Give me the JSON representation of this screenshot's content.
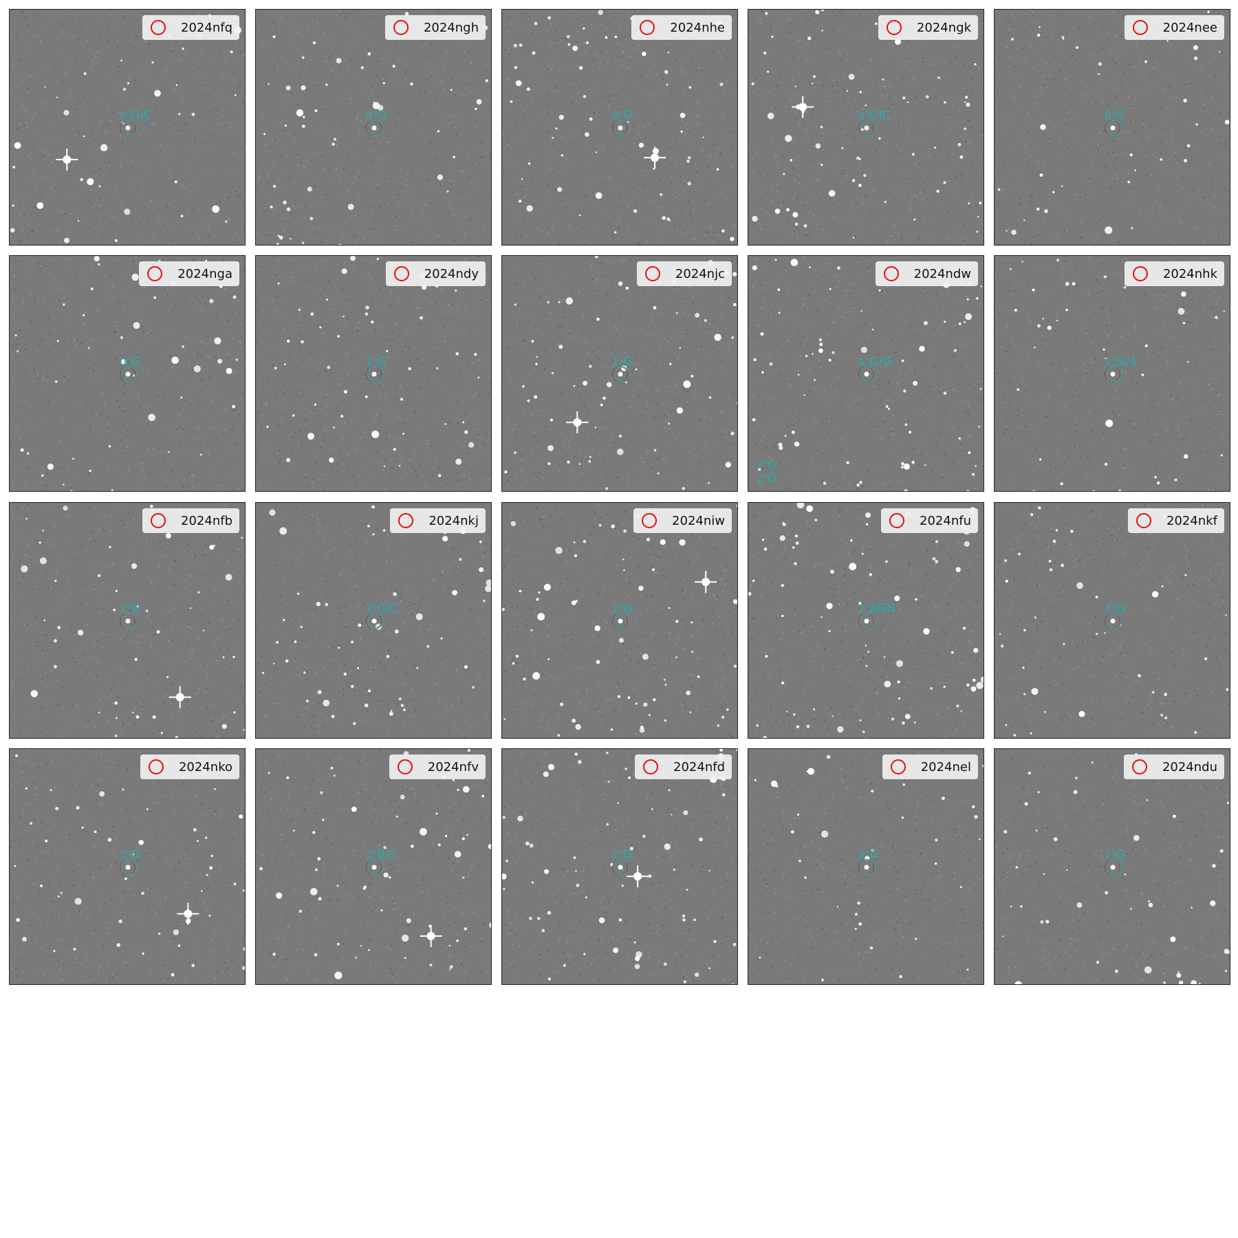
{
  "colors": {
    "target_circle": "#e01010",
    "host_annotation": "#20b0b0",
    "sky_background": "#7a7a7a",
    "legend_background": "#f0f0f0",
    "panel_border": "#222222"
  },
  "legend_marker_icon": "red-circle-icon",
  "panels": [
    {
      "label": "2024nfq",
      "annotations": [
        {
          "sep": "0\"",
          "cls": "GIC"
        }
      ]
    },
    {
      "label": "2024ngh",
      "annotations": [
        {
          "sep": "0\"",
          "cls": "G"
        }
      ]
    },
    {
      "label": "2024nhe",
      "annotations": [
        {
          "sep": "0\"",
          "cls": "G"
        }
      ]
    },
    {
      "label": "2024ngk",
      "annotations": [
        {
          "sep": "0\"",
          "cls": "GIC"
        }
      ]
    },
    {
      "label": "2024nee",
      "annotations": [
        {
          "sep": "0\"",
          "cls": "G"
        }
      ]
    },
    {
      "label": "2024nga",
      "annotations": [
        {
          "sep": "0\"",
          "cls": "G"
        }
      ]
    },
    {
      "label": "2024ndy",
      "annotations": [
        {
          "sep": "1\"",
          "cls": "G"
        }
      ]
    },
    {
      "label": "2024njc",
      "annotations": [
        {
          "sep": "1\"",
          "cls": "G"
        }
      ]
    },
    {
      "label": "2024ndw",
      "annotations": [
        {
          "sep": "1\"",
          "cls": "GrG"
        },
        {
          "sep": "3\"",
          "cls": "G"
        },
        {
          "sep": "2\"",
          "cls": "G"
        }
      ]
    },
    {
      "label": "2024nhk",
      "annotations": [
        {
          "sep": "1\"",
          "cls": "Sy1"
        }
      ]
    },
    {
      "label": "2024nfb",
      "annotations": [
        {
          "sep": "1\"",
          "cls": "G"
        }
      ]
    },
    {
      "label": "2024nkj",
      "annotations": [
        {
          "sep": "2\"",
          "cls": "GiC"
        }
      ]
    },
    {
      "label": "2024niw",
      "annotations": [
        {
          "sep": "2\"",
          "cls": "G"
        }
      ]
    },
    {
      "label": "2024nfu",
      "annotations": [
        {
          "sep": "2\"",
          "cls": "AGN"
        }
      ]
    },
    {
      "label": "2024nkf",
      "annotations": [
        {
          "sep": "2\"",
          "cls": "G"
        }
      ]
    },
    {
      "label": "2024nko",
      "annotations": [
        {
          "sep": "2\"",
          "cls": "G"
        }
      ]
    },
    {
      "label": "2024nfv",
      "annotations": [
        {
          "sep": "2\"",
          "cls": "BiC"
        }
      ]
    },
    {
      "label": "2024nfd",
      "annotations": [
        {
          "sep": "2\"",
          "cls": "G"
        }
      ]
    },
    {
      "label": "2024nel",
      "annotations": [
        {
          "sep": "2\"",
          "cls": "G"
        }
      ]
    },
    {
      "label": "2024ndu",
      "annotations": [
        {
          "sep": "2\"",
          "cls": "G"
        }
      ]
    }
  ]
}
